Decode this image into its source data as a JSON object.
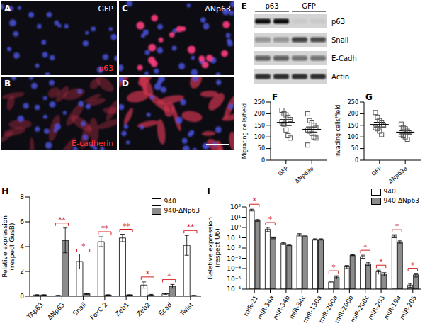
{
  "images": [
    {
      "label": "A",
      "texts": [
        {
          "text": "GFP",
          "color": "#ffffff"
        },
        {
          "text": "p63",
          "color": "#ff3030"
        }
      ]
    },
    {
      "label": "B",
      "texts": [
        {
          "text": "E-cadherin",
          "color": "#ff3030"
        }
      ]
    },
    {
      "label": "C",
      "texts": [
        {
          "text": "ΔNp63",
          "color": "#ffffff"
        }
      ]
    },
    {
      "label": "D",
      "texts": []
    }
  ],
  "blot": {
    "label": "E",
    "lanes": [
      "p63",
      "GFP"
    ],
    "rows": [
      "p63",
      "Snail",
      "E-Cadh",
      "Actin"
    ]
  },
  "chart_data": [
    {
      "label": "F",
      "type": "scatter",
      "categories": [
        "GFP",
        "ΔNp63α"
      ],
      "ylabel": "Migrating cells/field",
      "ylim": [
        0,
        250
      ],
      "yticks": [
        0,
        50,
        100,
        150,
        200,
        250
      ],
      "marker": "square",
      "values": [
        [
          215,
          200,
          195,
          185,
          175,
          165,
          155,
          130,
          105,
          95
        ],
        [
          200,
          170,
          160,
          150,
          140,
          130,
          125,
          115,
          100,
          95,
          65
        ]
      ],
      "means": [
        162,
        132
      ],
      "errors": [
        13,
        11
      ]
    },
    {
      "label": "G",
      "type": "scatter",
      "categories": [
        "GFP",
        "ΔNp63α"
      ],
      "ylabel": "Invading cells/field",
      "ylim": [
        0,
        250
      ],
      "yticks": [
        0,
        50,
        100,
        150,
        200,
        250
      ],
      "marker": "square",
      "values": [
        [
          205,
          185,
          170,
          160,
          150,
          140,
          135,
          125,
          110
        ],
        [
          155,
          140,
          135,
          125,
          120,
          110,
          105,
          100,
          90
        ]
      ],
      "means": [
        153,
        120
      ],
      "errors": [
        10,
        7
      ]
    },
    {
      "label": "H",
      "type": "bar",
      "categories": [
        "TAp63",
        "ΔNp63",
        "Snail",
        "FoxC 2",
        "Zeb1",
        "Zeb2",
        "Ecad",
        "Twist"
      ],
      "ylabel": "Relative expression (respect GusB)",
      "ylim": [
        0,
        8
      ],
      "yticks": [
        0,
        2,
        4,
        6,
        8
      ],
      "legend": "top-right",
      "series": [
        {
          "name": "940",
          "color": "#ffffff",
          "values": [
            0.1,
            0.05,
            2.8,
            4.4,
            4.7,
            0.9,
            0.2,
            4.1
          ],
          "errors": [
            0.02,
            0.02,
            0.6,
            0.4,
            0.3,
            0.25,
            0.05,
            0.8
          ]
        },
        {
          "name": "940-ΔNp63",
          "color": "#8c8c8c",
          "values": [
            0.1,
            4.5,
            0.2,
            0.1,
            0.1,
            0.1,
            0.8,
            0.05
          ],
          "errors": [
            0.02,
            1.0,
            0.05,
            0.02,
            0.02,
            0.05,
            0.15,
            0.02
          ]
        }
      ],
      "significance": [
        null,
        "**",
        "*",
        "**",
        "**",
        "*",
        "*",
        "**"
      ]
    },
    {
      "label": "I",
      "type": "bar",
      "log": "y",
      "categories": [
        "miR-21",
        "miR-34a",
        "miR-34b",
        "miR-34c",
        "miR-130a",
        "miR-200a",
        "miR-200b",
        "miR-200c",
        "miR-203",
        "miR-19a",
        "miR-205"
      ],
      "ylabel": "Relative expression (respect U6)",
      "ylim": [
        1e-06,
        100
      ],
      "yticks": [
        {
          "value": 1e-06,
          "label": "10⁻⁶"
        },
        {
          "value": 1e-05,
          "label": "10⁻⁵"
        },
        {
          "value": 0.0001,
          "label": "10⁻⁴"
        },
        {
          "value": 0.001,
          "label": "10⁻³"
        },
        {
          "value": 0.01,
          "label": "10⁻²"
        },
        {
          "value": 0.1,
          "label": "10⁻¹"
        },
        {
          "value": 1,
          "label": "10⁰"
        },
        {
          "value": 10,
          "label": "10¹"
        },
        {
          "value": 100,
          "label": "10²"
        }
      ],
      "legend": "top-right",
      "series": [
        {
          "name": "940",
          "color": "#ffffff",
          "values": [
            50,
            0.7,
            0.03,
            0.2,
            0.07,
            5e-06,
            0.00015,
            0.0015,
            5e-05,
            0.15,
            2.5e-06
          ],
          "errors": [
            10,
            0.3,
            0.005,
            0.05,
            0.01,
            1e-06,
            5e-05,
            0.0005,
            2e-05,
            0.05,
            1e-06
          ]
        },
        {
          "name": "940-ΔNp63",
          "color": "#8c8c8c",
          "values": [
            5,
            0.1,
            0.02,
            0.15,
            0.07,
            1.5e-05,
            0.002,
            0.0003,
            3e-05,
            0.04,
            2.5e-05
          ],
          "errors": [
            1,
            0.02,
            0.003,
            0.03,
            0.01,
            5e-06,
            0.0002,
            0.0001,
            1e-05,
            0.01,
            1e-05
          ]
        }
      ],
      "significance": [
        "*",
        "*",
        null,
        null,
        null,
        "*",
        null,
        "*",
        "*",
        "*",
        "*"
      ]
    }
  ]
}
